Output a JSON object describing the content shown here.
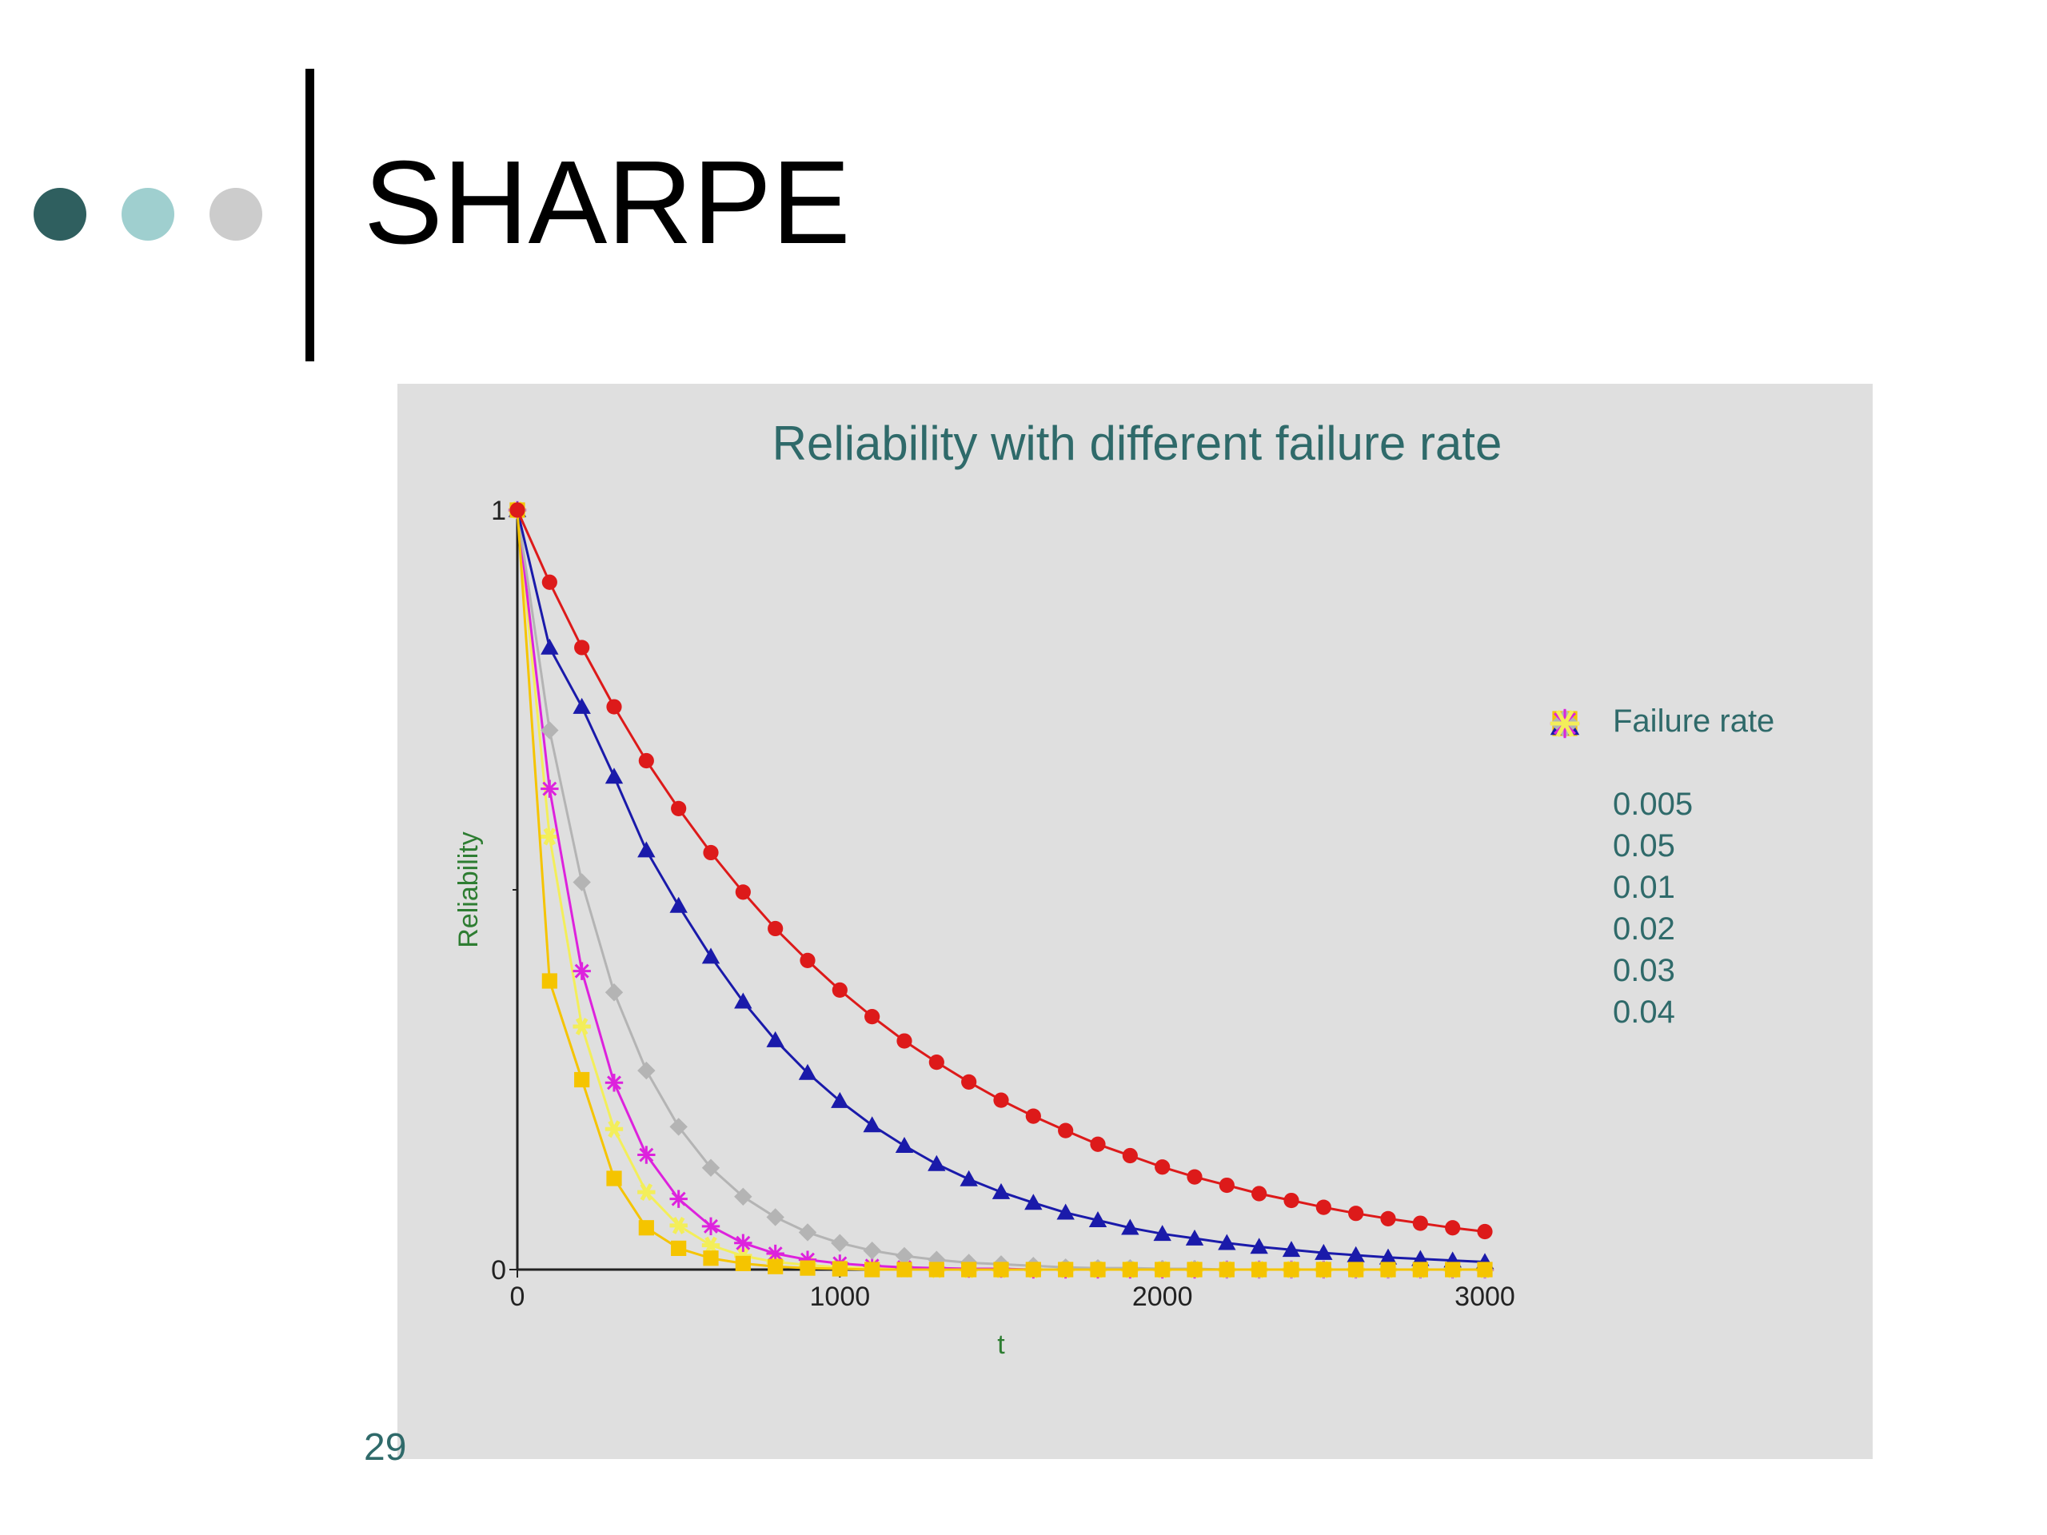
{
  "slide": {
    "title": "SHARPE",
    "number": "29",
    "dots": [
      {
        "color": "#2f5f5f"
      },
      {
        "color": "#9fcfcf"
      },
      {
        "color": "#cccccc"
      }
    ]
  },
  "chart_data": {
    "type": "line",
    "title": "Reliability with different failure rate",
    "xlabel": "t",
    "ylabel": "Reliability",
    "xlim": [
      0,
      3000
    ],
    "ylim": [
      0,
      1
    ],
    "x_ticks": [
      "0",
      "1000",
      "2000",
      "3000"
    ],
    "y_ticks": [
      "0",
      "1"
    ],
    "grid": false,
    "legend_title": "Failure rate",
    "legend_position": "right",
    "x_step": 100,
    "series": [
      {
        "name": "0.005",
        "color": "#dd1a1a",
        "marker": "circle",
        "marker_every": 1,
        "values": [
          1,
          0.905,
          0.819,
          0.741,
          0.67,
          0.607,
          0.549,
          0.497,
          0.449,
          0.407,
          0.368,
          0.333,
          0.301,
          0.273,
          0.247,
          0.223,
          0.202,
          0.183,
          0.165,
          0.15,
          0.135,
          0.122,
          0.111,
          0.1,
          0.091,
          0.082,
          0.074,
          0.067,
          0.061,
          0.055,
          0.05
        ]
      },
      {
        "name": "0.05",
        "color": "#f5c400",
        "marker": "square",
        "marker_every": 1,
        "values": [
          1,
          0.38,
          0.25,
          0.12,
          0.055,
          0.028,
          0.015,
          0.008,
          0.004,
          0.002,
          0.001,
          0,
          0,
          0,
          0,
          0,
          0,
          0,
          0,
          0,
          0,
          0,
          0,
          0,
          0,
          0,
          0,
          0,
          0,
          0,
          0
        ]
      },
      {
        "name": "0.01",
        "color": "#1a1aaa",
        "marker": "triangle",
        "marker_every": 1,
        "values": [
          1,
          0.819,
          0.741,
          0.649,
          0.552,
          0.479,
          0.412,
          0.353,
          0.302,
          0.259,
          0.222,
          0.19,
          0.163,
          0.139,
          0.119,
          0.102,
          0.088,
          0.075,
          0.065,
          0.055,
          0.047,
          0.041,
          0.035,
          0.03,
          0.026,
          0.022,
          0.019,
          0.016,
          0.014,
          0.012,
          0.01
        ]
      },
      {
        "name": "0.02",
        "color": "#b4b4b4",
        "marker": "diamond",
        "marker_every": 1,
        "values": [
          1,
          0.71,
          0.51,
          0.365,
          0.262,
          0.188,
          0.134,
          0.096,
          0.069,
          0.049,
          0.035,
          0.025,
          0.018,
          0.013,
          0.009,
          0.007,
          0.005,
          0.003,
          0.002,
          0.002,
          0.001,
          0.001,
          0,
          0,
          0,
          0,
          0,
          0,
          0,
          0,
          0
        ]
      },
      {
        "name": "0.03",
        "color": "#dd22dd",
        "marker": "asterisk",
        "marker_every": 1,
        "values": [
          1,
          0.633,
          0.393,
          0.246,
          0.151,
          0.093,
          0.057,
          0.035,
          0.021,
          0.013,
          0.008,
          0.005,
          0.003,
          0.002,
          0.001,
          0.001,
          0,
          0,
          0,
          0,
          0,
          0,
          0,
          0,
          0,
          0,
          0,
          0,
          0,
          0,
          0
        ]
      },
      {
        "name": "0.04",
        "color": "#f3ee5a",
        "marker": "star",
        "marker_every": 1,
        "values": [
          1,
          0.57,
          0.32,
          0.185,
          0.102,
          0.058,
          0.032,
          0.018,
          0.01,
          0.006,
          0.003,
          0.002,
          0.001,
          0,
          0,
          0,
          0,
          0,
          0,
          0,
          0,
          0,
          0,
          0,
          0,
          0,
          0,
          0,
          0,
          0,
          0
        ]
      }
    ]
  }
}
